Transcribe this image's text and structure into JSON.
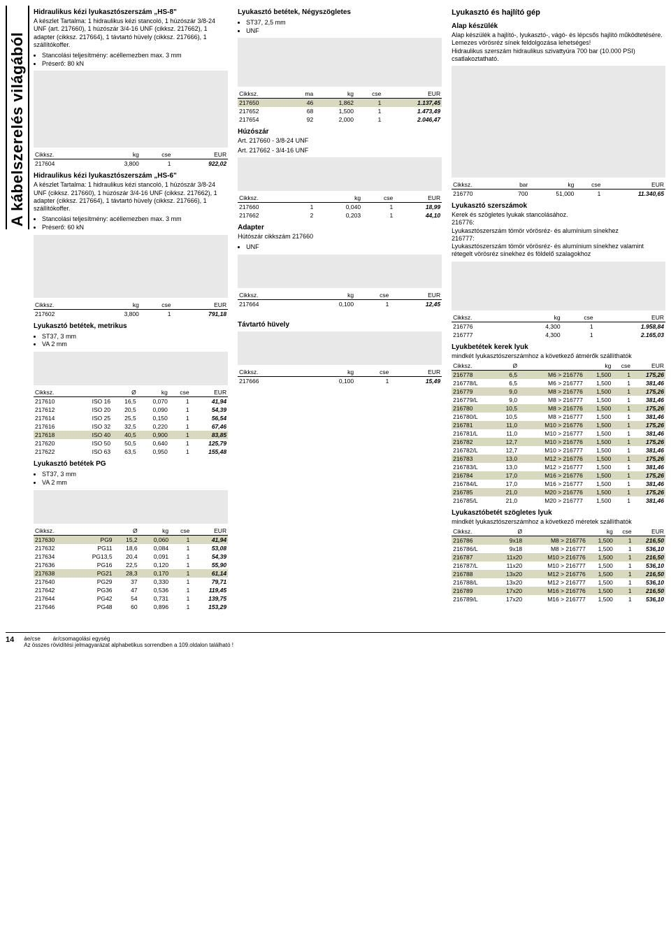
{
  "sidebar_label": "A kábelszerelés világából",
  "col1": {
    "hs8": {
      "title": "Hidraulikus kézi lyukasztószerszám „HS-8\"",
      "desc": "A készlet Tartalma: 1 hidraulikus kézi stancoló, 1 húzószár 3/8-24 UNF (art. 217660), 1 húzószár 3/4-16 UNF (cikksz. 217662), 1 adapter (cikksz. 217664), 1 távtartó hüvely (cikksz. 217666), 1 szállítókoffer.",
      "b1": "Stancolási teljesítmény: acéllemezben max. 3 mm",
      "b2": "Préserő: 80 kN",
      "rows": [
        [
          "217604",
          "3,800",
          "1",
          "922,02"
        ]
      ]
    },
    "hs6": {
      "title": "Hidraulikus kézi lyukasztószerszám „HS-6\"",
      "desc": "A készlet Tartalma: 1 hidraulikus kézi stancoló, 1 húzószár 3/8-24 UNF (cikksz. 217660), 1 húzószár 3/4-16 UNF (cikksz. 217662), 1 adapter (cikksz. 217664), 1 távtartó hüvely (cikksz. 217666), 1 szállítókoffer.",
      "b1": "Stancolási teljesítmény: acéllemezben max. 3 mm",
      "b2": "Préserő: 60 kN",
      "rows": [
        [
          "217602",
          "3,800",
          "1",
          "791,18"
        ]
      ]
    },
    "metrikus": {
      "title": "Lyukasztó betétek, metrikus",
      "b1": "ST37, 3 mm",
      "b2": "VA 2 mm",
      "rows": [
        [
          "217610",
          "ISO 16",
          "16,5",
          "0,070",
          "1",
          "41,94",
          false
        ],
        [
          "217612",
          "ISO 20",
          "20,5",
          "0,090",
          "1",
          "54,39",
          false
        ],
        [
          "217614",
          "ISO 25",
          "25,5",
          "0,150",
          "1",
          "56,54",
          false
        ],
        [
          "217616",
          "ISO 32",
          "32,5",
          "0,220",
          "1",
          "67,46",
          false
        ],
        [
          "217618",
          "ISO 40",
          "40,5",
          "0,900",
          "1",
          "83,85",
          true
        ],
        [
          "217620",
          "ISO 50",
          "50,5",
          "0,640",
          "1",
          "125,79",
          false
        ],
        [
          "217622",
          "ISO 63",
          "63,5",
          "0,950",
          "1",
          "155,48",
          false
        ]
      ]
    },
    "pg": {
      "title": "Lyukasztó betétek PG",
      "b1": "ST37, 3 mm",
      "b2": "VA 2 mm",
      "rows": [
        [
          "217630",
          "PG9",
          "15,2",
          "0,060",
          "1",
          "41,94",
          true
        ],
        [
          "217632",
          "PG11",
          "18,6",
          "0,084",
          "1",
          "53,08",
          false
        ],
        [
          "217634",
          "PG13,5",
          "20,4",
          "0,091",
          "1",
          "54,39",
          false
        ],
        [
          "217636",
          "PG16",
          "22,5",
          "0,120",
          "1",
          "55,90",
          false
        ],
        [
          "217638",
          "PG21",
          "28,3",
          "0,170",
          "1",
          "61,14",
          true
        ],
        [
          "217640",
          "PG29",
          "37",
          "0,330",
          "1",
          "79,71",
          false
        ],
        [
          "217642",
          "PG36",
          "47",
          "0,536",
          "1",
          "119,45",
          false
        ],
        [
          "217644",
          "PG42",
          "54",
          "0,731",
          "1",
          "139,75",
          false
        ],
        [
          "217646",
          "PG48",
          "60",
          "0,896",
          "1",
          "153,29",
          false
        ]
      ]
    }
  },
  "col2": {
    "negy": {
      "title": "Lyukasztó betétek, Négyszögletes",
      "b1": "ST37, 2,5 mm",
      "b2": "UNF",
      "rows": [
        [
          "217650",
          "46",
          "1,862",
          "1",
          "1.137,45",
          true
        ],
        [
          "217652",
          "68",
          "1,500",
          "1",
          "1.473,49",
          false
        ],
        [
          "217654",
          "92",
          "2,000",
          "1",
          "2.046,47",
          false
        ]
      ]
    },
    "huzoszar": {
      "title": "Húzószár",
      "l1": "Art. 217660 - 3/8-24 UNF",
      "l2": "Art. 217662 - 3/4-16 UNF",
      "rows": [
        [
          "217660",
          "1",
          "0,040",
          "1",
          "18,99",
          false
        ],
        [
          "217662",
          "2",
          "0,203",
          "1",
          "44,10",
          false
        ]
      ]
    },
    "adapter": {
      "title": "Adapter",
      "sub": "Hútószár cikkszám 217660",
      "b1": "UNF",
      "rows": [
        [
          "217664",
          "0,100",
          "1",
          "12,45"
        ]
      ]
    },
    "tav": {
      "title": "Távtartó hüvely",
      "rows": [
        [
          "217666",
          "0,100",
          "1",
          "15,49"
        ]
      ]
    }
  },
  "col3": {
    "gep": {
      "title": "Lyukasztó és hajlító gép",
      "sub": "Alap készülék",
      "desc": "Alap készülék a hajlító-, lyukasztó-, vágó- és lépcsős hajlító működtetésére.\nLemezes vörösréz sínek feldolgozása lehetséges!\nHidraulikus szerszám hidraulikus szivattyúra 700 bar (10.000 PSI) csatlakoztatható.",
      "rows": [
        [
          "216770",
          "700",
          "51,000",
          "1",
          "11.340,65"
        ]
      ]
    },
    "szersz": {
      "title": "Lyukasztó szerszámok",
      "desc": "Kerek és szögletes lyukak stancolásához.\n216776:\nLyukasztószerszám tömör vörösréz- és alumínium sínekhez\n216777:\nLyukasztószerszám tömör vörösréz- és alumínium sínekhez valamint rétegelt vörösréz sínekhez és földelő szalagokhoz",
      "rows": [
        [
          "216776",
          "4,300",
          "1",
          "1.958,84"
        ],
        [
          "216777",
          "4,300",
          "1",
          "2.165,03"
        ]
      ]
    },
    "kerek": {
      "title": "Lyukbetétek kerek lyuk",
      "desc": "mindkét lyukasztószerszámhoz a következő átmérők szállíthatók",
      "rows": [
        [
          "216778",
          "6,5",
          "M6 > 216776",
          "1,500",
          "1",
          "175,26",
          true
        ],
        [
          "216778/L",
          "6,5",
          "M6 > 216777",
          "1,500",
          "1",
          "381,46",
          false
        ],
        [
          "216779",
          "9,0",
          "M8 > 216776",
          "1,500",
          "1",
          "175,26",
          true
        ],
        [
          "216779/L",
          "9,0",
          "M8 > 216777",
          "1,500",
          "1",
          "381,46",
          false
        ],
        [
          "216780",
          "10,5",
          "M8 > 216776",
          "1,500",
          "1",
          "175,26",
          true
        ],
        [
          "216780/L",
          "10,5",
          "M8 > 216777",
          "1,500",
          "1",
          "381,46",
          false
        ],
        [
          "216781",
          "11,0",
          "M10 > 216776",
          "1,500",
          "1",
          "175,26",
          true
        ],
        [
          "216781/L",
          "11,0",
          "M10 > 216777",
          "1,500",
          "1",
          "381,46",
          false
        ],
        [
          "216782",
          "12,7",
          "M10 > 216776",
          "1,500",
          "1",
          "175,26",
          true
        ],
        [
          "216782/L",
          "12,7",
          "M10 > 216777",
          "1,500",
          "1",
          "381,46",
          false
        ],
        [
          "216783",
          "13,0",
          "M12 > 216776",
          "1,500",
          "1",
          "175,26",
          true
        ],
        [
          "216783/L",
          "13,0",
          "M12 > 216777",
          "1,500",
          "1",
          "381,46",
          false
        ],
        [
          "216784",
          "17,0",
          "M16 > 216776",
          "1,500",
          "1",
          "175,26",
          true
        ],
        [
          "216784/L",
          "17,0",
          "M16 > 216777",
          "1,500",
          "1",
          "381,46",
          false
        ],
        [
          "216785",
          "21,0",
          "M20 > 216776",
          "1,500",
          "1",
          "175,26",
          true
        ],
        [
          "216785/L",
          "21,0",
          "M20 > 216777",
          "1,500",
          "1",
          "381,46",
          false
        ]
      ]
    },
    "szog": {
      "title": "Lyukasztóbetét szögletes lyuk",
      "desc": "mindkét lyukasztószerszámhoz  a következő méretek szállíthatók",
      "rows": [
        [
          "216786",
          "9x18",
          "M8 > 216776",
          "1,500",
          "1",
          "216,50",
          true
        ],
        [
          "216786/L",
          "9x18",
          "M8 > 216777",
          "1,500",
          "1",
          "536,10",
          false
        ],
        [
          "216787",
          "11x20",
          "M10 > 216776",
          "1,500",
          "1",
          "216,50",
          true
        ],
        [
          "216787/L",
          "11x20",
          "M10 > 216777",
          "1,500",
          "1",
          "536,10",
          false
        ],
        [
          "216788",
          "13x20",
          "M12 > 216776",
          "1,500",
          "1",
          "216,50",
          true
        ],
        [
          "216788/L",
          "13x20",
          "M12 > 216777",
          "1,500",
          "1",
          "536,10",
          false
        ],
        [
          "216789",
          "17x20",
          "M16 > 216776",
          "1,500",
          "1",
          "216,50",
          true
        ],
        [
          "216789/L",
          "17x20",
          "M16 > 216777",
          "1,500",
          "1",
          "536,10",
          false
        ]
      ]
    }
  },
  "th": {
    "cikksz": "Cikksz.",
    "kg": "kg",
    "cse": "cse",
    "eur": "EUR",
    "o": "Ø",
    "ma": "ma",
    "bar": "bar"
  },
  "footer": {
    "page": "14",
    "l1": "áe/cse        ár/csomagolási egység",
    "l2": "Az összes rövidítési jelmagyarázat alphabetikus sorrendben a 109.oldalon található !"
  }
}
